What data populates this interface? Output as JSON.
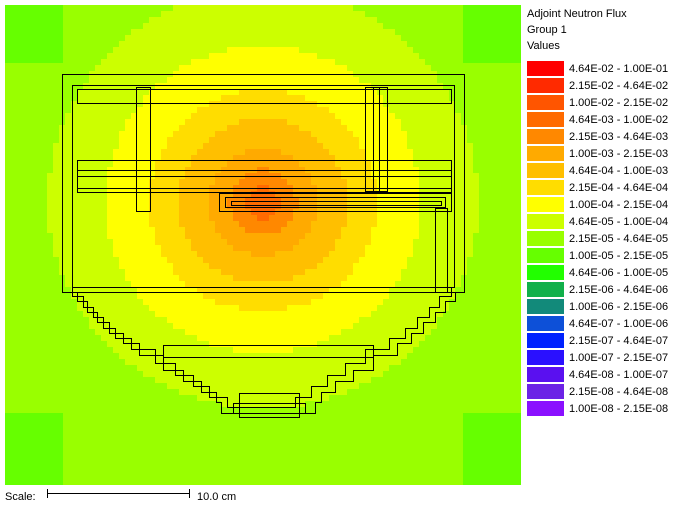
{
  "chart_data": {
    "type": "heatmap",
    "title": "Adjoint Neutron Flux",
    "subtitle": "Group 1",
    "legend_heading": "Values",
    "legend_placement": "right",
    "color_scale": [
      {
        "range": "4.64E-02 - 1.00E-01",
        "min": 0.0464,
        "max": 0.1,
        "color": "#ff0000"
      },
      {
        "range": "2.15E-02 - 4.64E-02",
        "min": 0.0215,
        "max": 0.0464,
        "color": "#ff2a00"
      },
      {
        "range": "1.00E-02 - 2.15E-02",
        "min": 0.01,
        "max": 0.0215,
        "color": "#ff5500"
      },
      {
        "range": "4.64E-03 - 1.00E-02",
        "min": 0.00464,
        "max": 0.01,
        "color": "#ff6a00"
      },
      {
        "range": "2.15E-03 - 4.64E-03",
        "min": 0.00215,
        "max": 0.00464,
        "color": "#ff8800"
      },
      {
        "range": "1.00E-03 - 2.15E-03",
        "min": 0.001,
        "max": 0.00215,
        "color": "#ffaa00"
      },
      {
        "range": "4.64E-04 - 1.00E-03",
        "min": 0.000464,
        "max": 0.001,
        "color": "#ffbf00"
      },
      {
        "range": "2.15E-04 - 4.64E-04",
        "min": 0.000215,
        "max": 0.000464,
        "color": "#ffdd00"
      },
      {
        "range": "1.00E-04 - 2.15E-04",
        "min": 0.0001,
        "max": 0.000215,
        "color": "#ffff00"
      },
      {
        "range": "4.64E-05 - 1.00E-04",
        "min": 4.64e-05,
        "max": 0.0001,
        "color": "#ccff00"
      },
      {
        "range": "2.15E-05 - 4.64E-05",
        "min": 2.15e-05,
        "max": 4.64e-05,
        "color": "#99ff00"
      },
      {
        "range": "1.00E-05 - 2.15E-05",
        "min": 1e-05,
        "max": 2.15e-05,
        "color": "#66ff00"
      },
      {
        "range": "4.64E-06 - 1.00E-05",
        "min": 4.64e-06,
        "max": 1e-05,
        "color": "#22ff00"
      },
      {
        "range": "2.15E-06 - 4.64E-06",
        "min": 2.15e-06,
        "max": 4.64e-06,
        "color": "#11b04a"
      },
      {
        "range": "1.00E-06 - 2.15E-06",
        "min": 1e-06,
        "max": 2.15e-06,
        "color": "#128a7a"
      },
      {
        "range": "4.64E-07 - 1.00E-06",
        "min": 4.64e-07,
        "max": 1e-06,
        "color": "#0d50d8"
      },
      {
        "range": "2.15E-07 - 4.64E-07",
        "min": 2.15e-07,
        "max": 4.64e-07,
        "color": "#0022ff"
      },
      {
        "range": "1.00E-07 - 2.15E-07",
        "min": 1e-07,
        "max": 2.15e-07,
        "color": "#2a10ff"
      },
      {
        "range": "4.64E-08 - 1.00E-07",
        "min": 4.64e-08,
        "max": 1e-07,
        "color": "#5a10f0"
      },
      {
        "range": "2.15E-08 - 4.64E-08",
        "min": 2.15e-08,
        "max": 4.64e-08,
        "color": "#6c22e6"
      },
      {
        "range": "1.00E-08 - 2.15E-08",
        "min": 1e-08,
        "max": 2.15e-08,
        "color": "#8a10ff"
      }
    ],
    "peak_band": "4.64E-03 - 1.00E-02",
    "scale_bar": {
      "label": "Scale:",
      "value": "10.0 cm"
    }
  }
}
